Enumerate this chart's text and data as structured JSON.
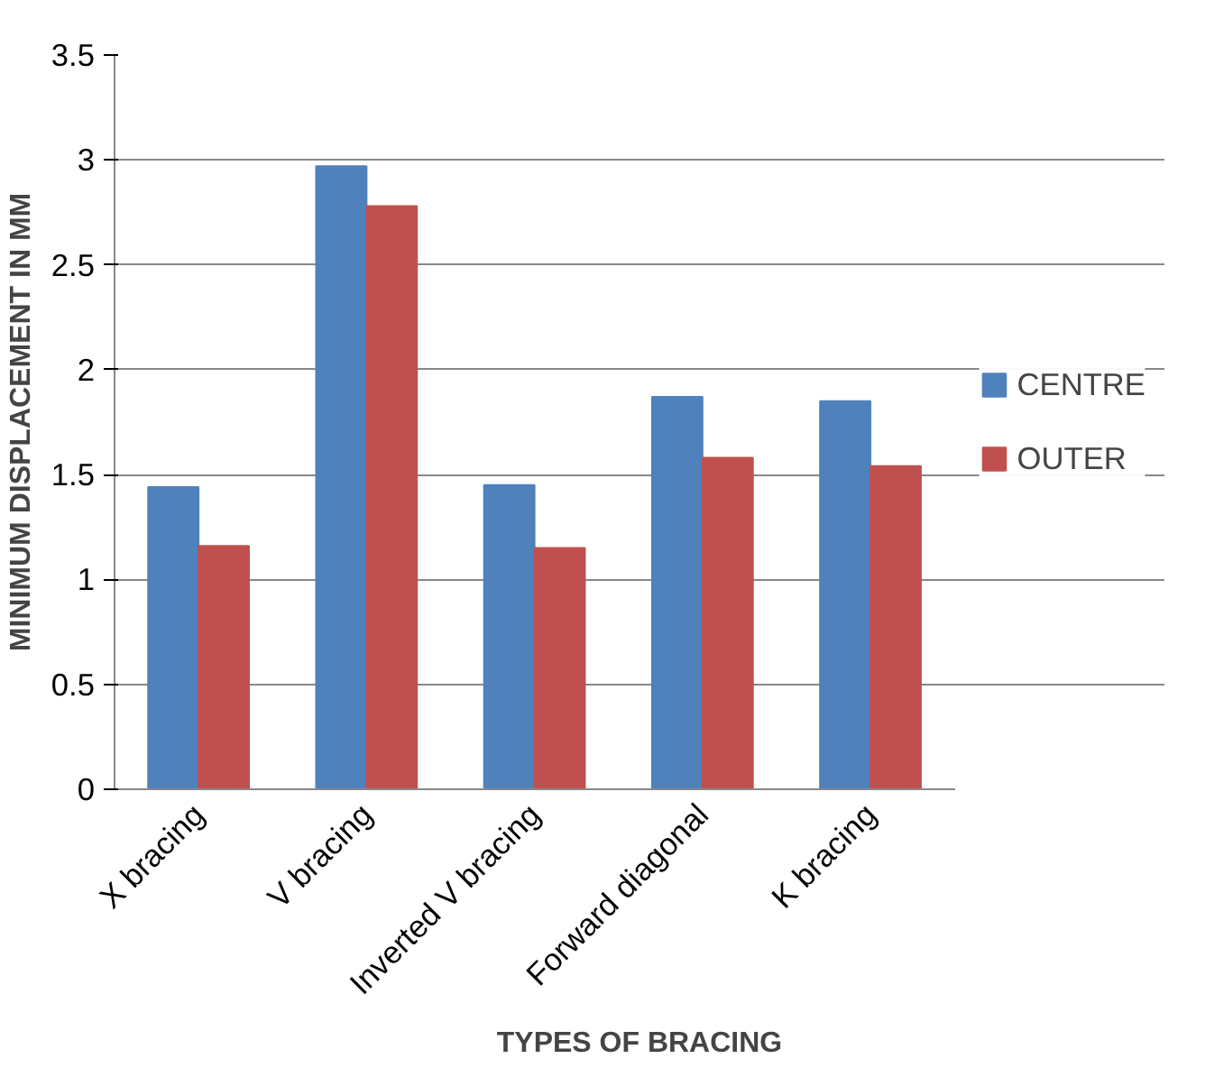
{
  "chart_data": {
    "type": "bar",
    "categories": [
      "X bracing",
      "V bracing",
      "Inverted V bracing",
      "Forward diagonal",
      "K bracing"
    ],
    "series": [
      {
        "name": "CENTRE",
        "color": "#4f81bd",
        "values": [
          1.44,
          2.97,
          1.45,
          1.87,
          1.85
        ]
      },
      {
        "name": "OUTER",
        "color": "#c0504d",
        "values": [
          1.16,
          2.78,
          1.15,
          1.58,
          1.54
        ]
      }
    ],
    "xlabel": "TYPES OF BRACING",
    "ylabel": "MINIMUM DISPLACEMENT IN MM",
    "ylim": [
      0,
      3.5
    ],
    "yticks": [
      0,
      {
        "value": 0.5,
        "label": "0.5"
      },
      1,
      {
        "value": 1.5,
        "label": "1.5"
      },
      2,
      {
        "value": 2.5,
        "label": "2.5"
      },
      3,
      {
        "value": 3.5,
        "label": "3.5"
      }
    ],
    "grid": "y",
    "legend": "right"
  }
}
